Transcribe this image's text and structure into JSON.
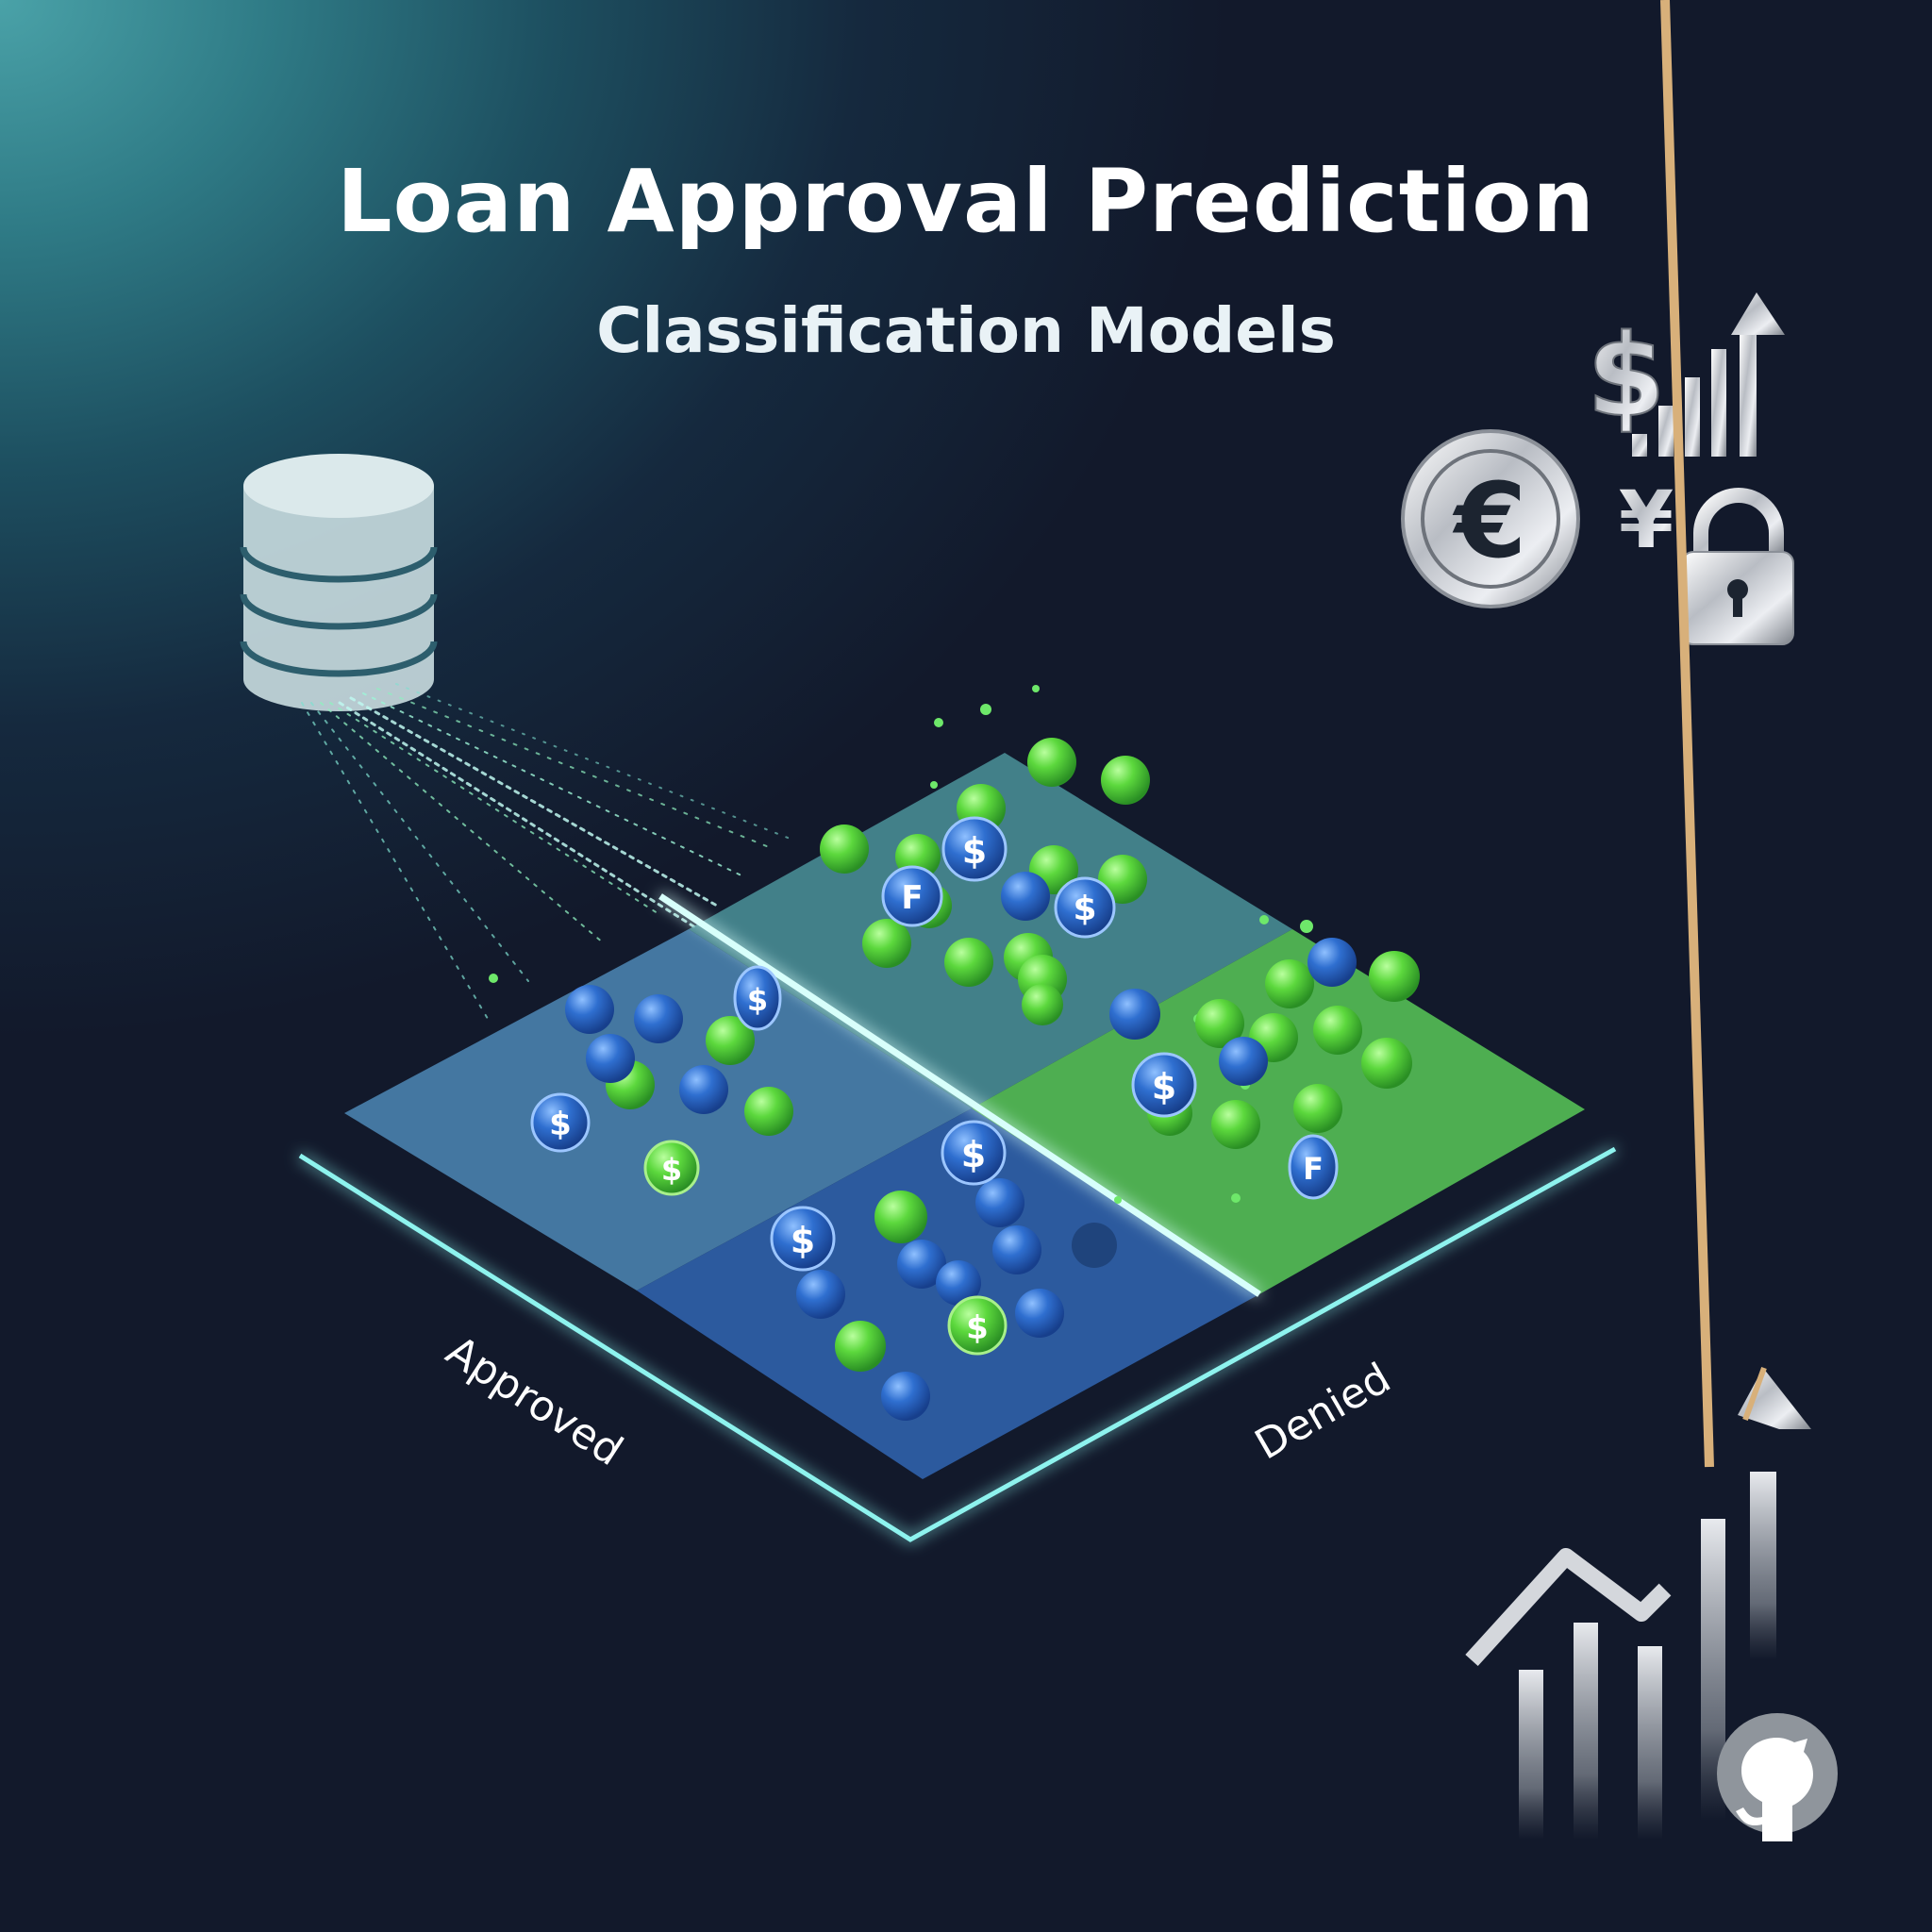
{
  "header": {
    "title": "Loan Approval Prediction",
    "subtitle": "Classification Models"
  },
  "plane": {
    "approved_label": "Approved",
    "denied_label": "Denied"
  },
  "markers": {
    "coin_symbols": [
      "$",
      "F"
    ]
  },
  "icons": {
    "top_right": [
      "dollar-sign-icon",
      "signal-bars-arrow-icon",
      "euro-coin-icon",
      "yen-sign-icon",
      "padlock-icon"
    ],
    "bottom_right": [
      "growth-chart-arrow-icon",
      "github-icon"
    ],
    "left": [
      "database-icon"
    ],
    "glyphs": {
      "dollar": "$",
      "euro": "€",
      "yen": "¥"
    }
  },
  "colors": {
    "approved": "#3f86d4",
    "denied": "#58d24a",
    "plane_glow": "#7fe9e6"
  }
}
